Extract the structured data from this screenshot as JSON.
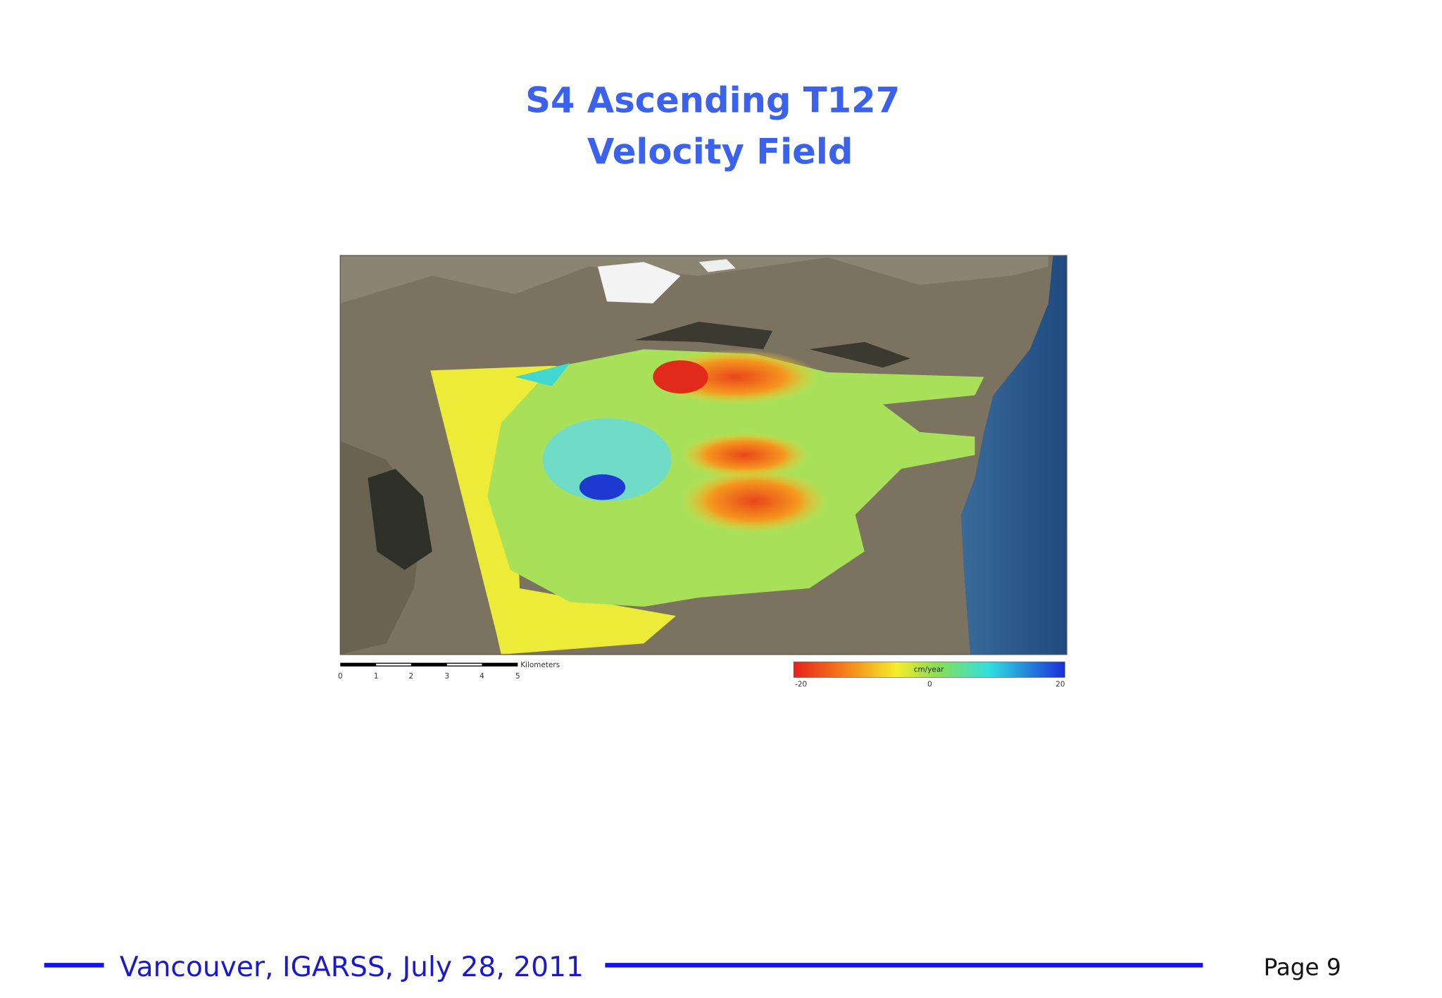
{
  "header": {
    "title": [
      "S4 Ascending T127",
      "Velocity Field"
    ]
  },
  "figure": {
    "scale_bar": {
      "labels": [
        "0",
        "1",
        "2",
        "3",
        "4",
        "5"
      ],
      "unit": "Kilometers"
    },
    "color_bar": {
      "unit": "cm/year",
      "labels": [
        "-20",
        "0",
        "20"
      ]
    }
  },
  "footer": {
    "venue": "Vancouver, IGARSS, July 28, 2011",
    "page": "Page 9"
  }
}
